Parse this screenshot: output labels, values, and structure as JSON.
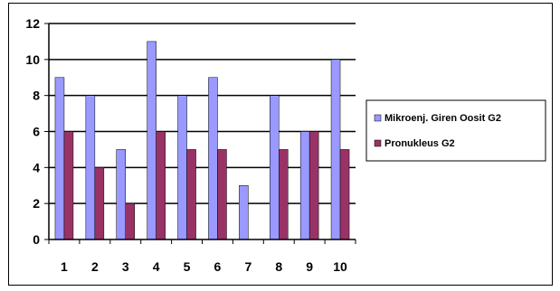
{
  "chart_data": {
    "type": "bar",
    "categories": [
      "1",
      "2",
      "3",
      "4",
      "5",
      "6",
      "7",
      "8",
      "9",
      "10"
    ],
    "series": [
      {
        "name": "Mikroenj. Giren Oosit G2",
        "values": [
          9,
          8,
          5,
          11,
          8,
          9,
          3,
          8,
          6,
          10
        ],
        "color": "#9999ff"
      },
      {
        "name": "Pronukleus G2",
        "values": [
          6,
          4,
          2,
          6,
          5,
          5,
          0,
          5,
          6,
          5
        ],
        "color": "#993366"
      }
    ],
    "ylim": [
      0,
      12
    ],
    "yticks": [
      "0",
      "2",
      "4",
      "6",
      "8",
      "10",
      "12"
    ],
    "grid": true,
    "legend_position": "right"
  }
}
